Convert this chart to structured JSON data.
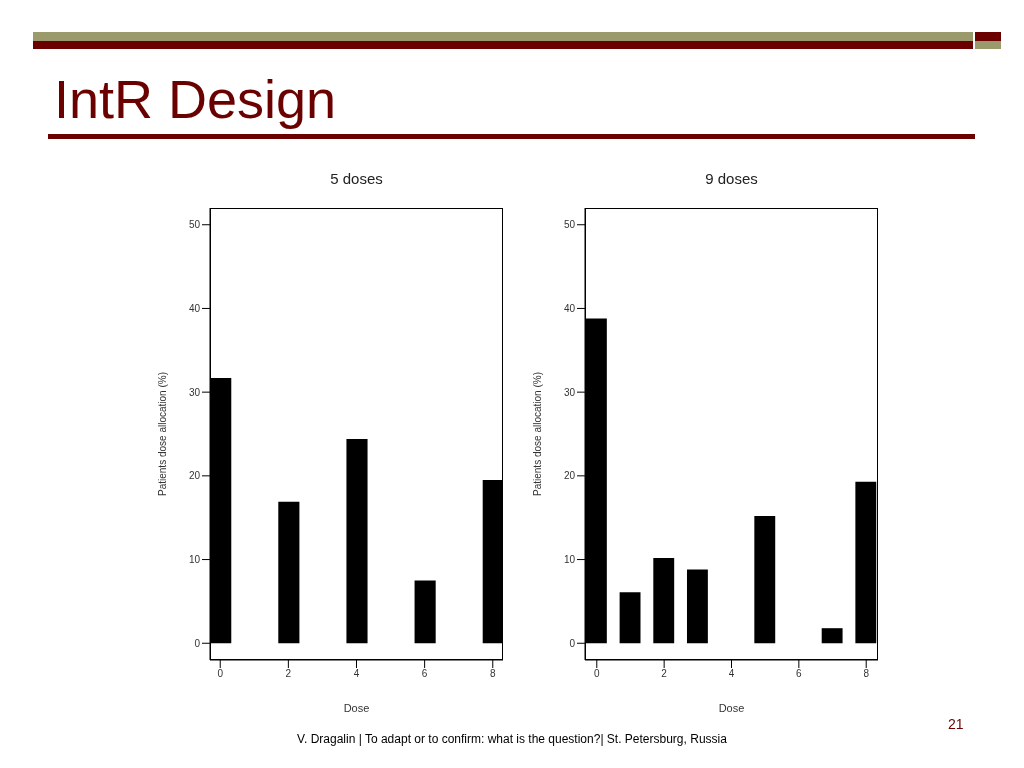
{
  "chart_data": [
    {
      "type": "bar",
      "title": "5 doses",
      "xlabel": "Dose",
      "ylabel": "Patients dose allocation (%)",
      "x": [
        0,
        2,
        4,
        6,
        8
      ],
      "values": [
        31.7,
        16.9,
        24.4,
        7.5,
        19.5
      ],
      "color": "#000000",
      "xlim": [
        -0.3,
        8.3
      ],
      "xticks": [
        0,
        2,
        4,
        6,
        8
      ],
      "ylim": [
        -2,
        52
      ],
      "yticks": [
        0,
        10,
        20,
        30,
        40,
        50
      ],
      "annotations": [
        "IntR Design",
        "V. Dragalin | To adapt or to confirm: what is the question?| St. Petersburg, Russia",
        "21"
      ]
    },
    {
      "type": "bar",
      "title": "9 doses",
      "xlabel": "Dose",
      "ylabel": "Patients dose allocation (%)",
      "x": [
        0,
        1,
        2,
        3,
        5,
        7,
        8
      ],
      "values": [
        38.8,
        6.1,
        10.2,
        8.8,
        15.2,
        1.8,
        19.3
      ],
      "color": "#000000",
      "xlim": [
        -0.35,
        8.35
      ],
      "xticks": [
        0,
        2,
        4,
        6,
        8
      ],
      "ylim": [
        -2,
        52
      ],
      "yticks": [
        0,
        10,
        20,
        30,
        40,
        50
      ]
    }
  ]
}
